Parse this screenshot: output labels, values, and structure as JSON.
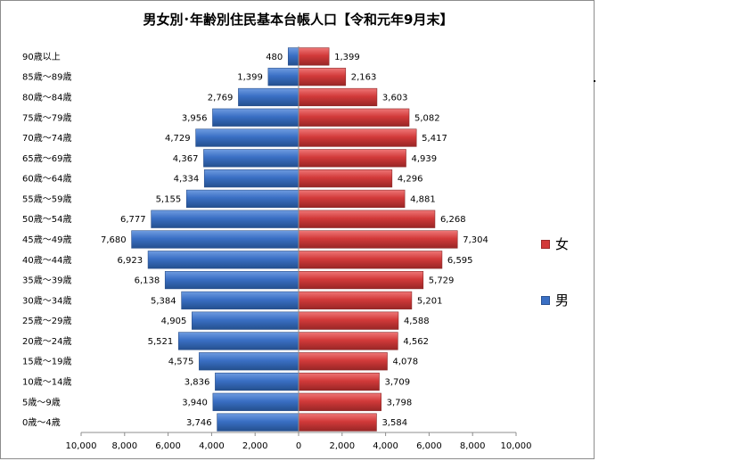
{
  "chart_data": {
    "type": "bar",
    "orientation": "horizontal",
    "layout": "population-pyramid",
    "title": "男女別･年齢別住民基本台帳人口【令和元年9月末】",
    "categories": [
      "90歳以上",
      "85歳～89歳",
      "80歳～84歳",
      "75歳～79歳",
      "70歳～74歳",
      "65歳～69歳",
      "60歳～64歳",
      "55歳～59歳",
      "50歳～54歳",
      "45歳～49歳",
      "40歳～44歳",
      "35歳～39歳",
      "30歳～34歳",
      "25歳～29歳",
      "20歳～24歳",
      "15歳～19歳",
      "10歳～14歳",
      "5歳～9歳",
      "0歳～4歳"
    ],
    "series": [
      {
        "name": "男",
        "side": "left",
        "color": "#3a6fc4",
        "values": [
          480,
          1399,
          2769,
          3956,
          4729,
          4367,
          4334,
          5155,
          6777,
          7680,
          6923,
          6138,
          5384,
          4905,
          5521,
          4575,
          3836,
          3940,
          3746
        ],
        "labels": [
          "480",
          "1,399",
          "2,769",
          "3,956",
          "4,729",
          "4,367",
          "4,334",
          "5,155",
          "6,777",
          "7,680",
          "6,923",
          "6,138",
          "5,384",
          "4,905",
          "5,521",
          "4,575",
          "3,836",
          "3,940",
          "3,746"
        ]
      },
      {
        "name": "女",
        "side": "right",
        "color": "#d23a3a",
        "values": [
          1399,
          2163,
          3603,
          5082,
          5417,
          4939,
          4296,
          4881,
          6268,
          7304,
          6595,
          5729,
          5201,
          4588,
          4562,
          4078,
          3709,
          3798,
          3584
        ],
        "labels": [
          "1,399",
          "2,163",
          "3,603",
          "5,082",
          "5,417",
          "4,939",
          "4,296",
          "4,881",
          "6,268",
          "7,304",
          "6,595",
          "5,729",
          "5,201",
          "4,588",
          "4,562",
          "4,078",
          "3,709",
          "3,798",
          "3,584"
        ]
      }
    ],
    "xlim": [
      -10000,
      10000
    ],
    "xticks": [
      -10000,
      -8000,
      -6000,
      -4000,
      -2000,
      0,
      2000,
      4000,
      6000,
      8000,
      10000
    ],
    "xtick_labels": [
      "10,000",
      "8,000",
      "6,000",
      "4,000",
      "2,000",
      "0",
      "2,000",
      "4,000",
      "6,000",
      "8,000",
      "10,000"
    ],
    "grid": false,
    "legend": {
      "placement": "right",
      "order": [
        "女",
        "男"
      ]
    }
  }
}
